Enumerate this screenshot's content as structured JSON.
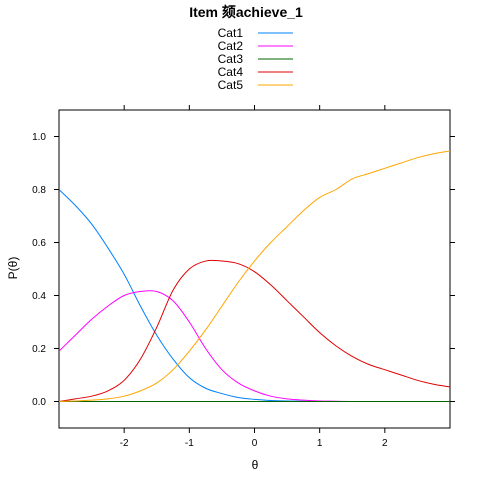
{
  "chart_data": {
    "type": "line",
    "title": "Item 颏achieve_1",
    "xlabel": "θ",
    "ylabel": "P(θ)",
    "xlim": [
      -3,
      3
    ],
    "ylim": [
      -0.1,
      1.1
    ],
    "x_ticks": [
      -2,
      -1,
      0,
      1,
      2
    ],
    "x_tick_labels": [
      "-2",
      "-1",
      "0",
      "1",
      "2"
    ],
    "y_ticks": [
      0.0,
      0.2,
      0.4,
      0.6,
      0.8,
      1.0
    ],
    "y_tick_labels": [
      "0.0",
      "0.2",
      "0.4",
      "0.6",
      "0.8",
      "1.0"
    ],
    "grid": false,
    "legend_position": "top",
    "x": [
      -3,
      -2.75,
      -2.5,
      -2.25,
      -2,
      -1.75,
      -1.5,
      -1.25,
      -1,
      -0.75,
      -0.5,
      -0.25,
      0,
      0.25,
      0.5,
      0.75,
      1,
      1.25,
      1.5,
      1.75,
      2,
      2.25,
      2.5,
      2.75,
      3
    ],
    "series": [
      {
        "name": "Cat1",
        "color": "#0080ff",
        "values": [
          0.8,
          0.74,
          0.67,
          0.58,
          0.48,
          0.36,
          0.25,
          0.16,
          0.09,
          0.05,
          0.03,
          0.015,
          0.008,
          0.004,
          0.002,
          0.001,
          0.0,
          0.0,
          0.0,
          0.0,
          0.0,
          0.0,
          0.0,
          0.0,
          0.0
        ]
      },
      {
        "name": "Cat2",
        "color": "#ff00ff",
        "values": [
          0.19,
          0.25,
          0.31,
          0.36,
          0.4,
          0.415,
          0.415,
          0.38,
          0.3,
          0.2,
          0.12,
          0.07,
          0.04,
          0.02,
          0.01,
          0.005,
          0.002,
          0.001,
          0.0,
          0.0,
          0.0,
          0.0,
          0.0,
          0.0,
          0.0
        ]
      },
      {
        "name": "Cat3",
        "color": "#006400",
        "values": [
          0.0,
          0.0,
          0.0,
          0.0,
          0.0,
          0.0,
          0.0,
          0.0,
          0.0,
          0.0,
          0.0,
          0.0,
          0.0,
          0.0,
          0.0,
          0.0,
          0.0,
          0.0,
          0.0,
          0.0,
          0.0,
          0.0,
          0.0,
          0.0,
          0.0
        ]
      },
      {
        "name": "Cat4",
        "color": "#e00000",
        "values": [
          0.0,
          0.01,
          0.02,
          0.04,
          0.08,
          0.16,
          0.28,
          0.42,
          0.5,
          0.53,
          0.53,
          0.52,
          0.49,
          0.44,
          0.38,
          0.32,
          0.26,
          0.21,
          0.17,
          0.14,
          0.12,
          0.1,
          0.08,
          0.065,
          0.055
        ]
      },
      {
        "name": "Cat5",
        "color": "#ffa500",
        "values": [
          0.0,
          0.002,
          0.005,
          0.01,
          0.02,
          0.04,
          0.07,
          0.12,
          0.19,
          0.27,
          0.36,
          0.45,
          0.53,
          0.6,
          0.66,
          0.72,
          0.77,
          0.8,
          0.84,
          0.86,
          0.88,
          0.9,
          0.92,
          0.935,
          0.945
        ]
      }
    ]
  }
}
